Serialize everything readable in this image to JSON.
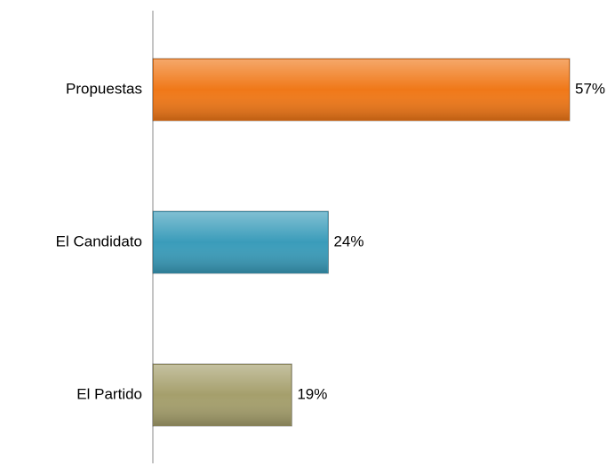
{
  "chart_data": {
    "type": "bar",
    "orientation": "horizontal",
    "categories": [
      "Propuestas",
      "El Candidato",
      "El Partido"
    ],
    "values": [
      57,
      24,
      19
    ],
    "value_labels": [
      "57%",
      "24%",
      "19%"
    ],
    "colors": [
      "#f07818",
      "#3a9cba",
      "#a59f6c"
    ]
  }
}
